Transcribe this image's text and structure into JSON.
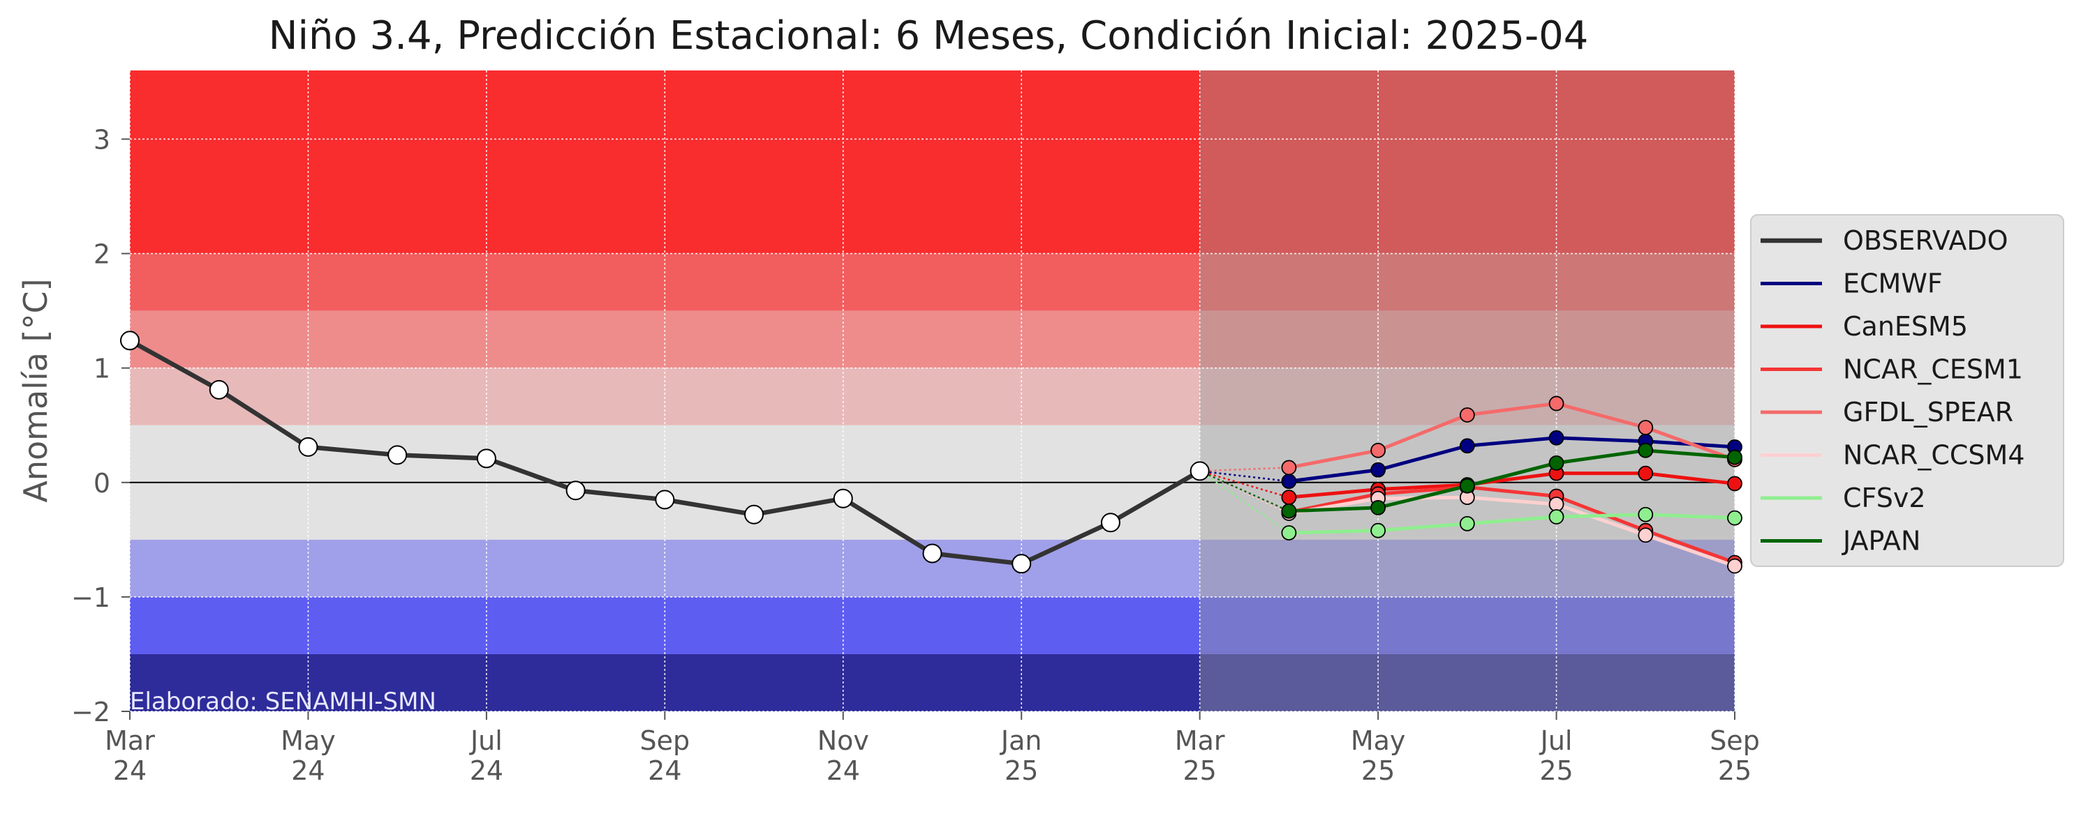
{
  "chart_data": {
    "type": "line",
    "title": "Niño 3.4, Predicción Estacional: 6 Meses, Condición Inicial: 2025-04",
    "xlabel": "",
    "ylabel": "Anomalía [°C]",
    "ylim": [
      -2,
      3.6
    ],
    "yticks": [
      -2,
      -1,
      0,
      1,
      2,
      3
    ],
    "ytick_labels": [
      "−2",
      "−1",
      "0",
      "1",
      "2",
      "3"
    ],
    "xlim": [
      "2024-03",
      "2025-09"
    ],
    "xticks": [
      "2024-03",
      "2024-05",
      "2024-07",
      "2024-09",
      "2024-11",
      "2025-01",
      "2025-03",
      "2025-05",
      "2025-07",
      "2025-09"
    ],
    "xtick_labels": [
      "Mar\n24",
      "May\n24",
      "Jul\n24",
      "Sep\n24",
      "Nov\n24",
      "Jan\n25",
      "Mar\n25",
      "May\n25",
      "Jul\n25",
      "Sep\n25"
    ],
    "grid": true,
    "legend_position": "right",
    "forecast_start": "2025-03",
    "background_bands": [
      {
        "from": 2.0,
        "to": 3.6,
        "color": "#f92c2e"
      },
      {
        "from": 1.5,
        "to": 2.0,
        "color": "#f25d5e"
      },
      {
        "from": 1.0,
        "to": 1.5,
        "color": "#ee8c8c"
      },
      {
        "from": 0.5,
        "to": 1.0,
        "color": "#e8b9b9"
      },
      {
        "from": -0.5,
        "to": 0.5,
        "color": "#e2e2e2"
      },
      {
        "from": -1.0,
        "to": -0.5,
        "color": "#a09fe9"
      },
      {
        "from": -1.5,
        "to": -1.0,
        "color": "#5e5df2"
      },
      {
        "from": -2.0,
        "to": -1.5,
        "color": "#2e2c9a"
      }
    ],
    "observed": {
      "name": "OBSERVADO",
      "color": "#333333",
      "x": [
        "2024-03",
        "2024-04",
        "2024-05",
        "2024-06",
        "2024-07",
        "2024-08",
        "2024-09",
        "2024-10",
        "2024-11",
        "2024-12",
        "2025-01",
        "2025-02",
        "2025-03"
      ],
      "values": [
        1.24,
        0.81,
        0.31,
        0.24,
        0.21,
        -0.07,
        -0.15,
        -0.28,
        -0.14,
        -0.62,
        -0.71,
        -0.35,
        0.1
      ]
    },
    "series": [
      {
        "name": "ECMWF",
        "color": "#000080",
        "x": [
          "2025-04",
          "2025-05",
          "2025-06",
          "2025-07",
          "2025-08",
          "2025-09"
        ],
        "values": [
          0.01,
          0.11,
          0.32,
          0.39,
          0.36,
          0.31
        ]
      },
      {
        "name": "CanESM5",
        "color": "#ee1111",
        "x": [
          "2025-04",
          "2025-05",
          "2025-06",
          "2025-07",
          "2025-08",
          "2025-09"
        ],
        "values": [
          -0.13,
          -0.06,
          -0.02,
          0.08,
          0.08,
          -0.01
        ]
      },
      {
        "name": "NCAR_CESM1",
        "color": "#f53535",
        "x": [
          "2025-04",
          "2025-05",
          "2025-06",
          "2025-07",
          "2025-08",
          "2025-09"
        ],
        "values": [
          -0.26,
          -0.1,
          -0.04,
          -0.12,
          -0.42,
          -0.7
        ]
      },
      {
        "name": "GFDL_SPEAR",
        "color": "#f56a6a",
        "x": [
          "2025-04",
          "2025-05",
          "2025-06",
          "2025-07",
          "2025-08",
          "2025-09"
        ],
        "values": [
          0.13,
          0.28,
          0.59,
          0.69,
          0.48,
          0.2
        ]
      },
      {
        "name": "NCAR_CCSM4",
        "color": "#ffd0d0",
        "x": [
          "2025-04",
          "2025-05",
          "2025-06",
          "2025-07",
          "2025-08",
          "2025-09"
        ],
        "values": [
          -0.27,
          -0.14,
          -0.13,
          -0.19,
          -0.46,
          -0.73
        ]
      },
      {
        "name": "CFSv2",
        "color": "#90ee90",
        "x": [
          "2025-04",
          "2025-05",
          "2025-06",
          "2025-07",
          "2025-08",
          "2025-09"
        ],
        "values": [
          -0.44,
          -0.42,
          -0.36,
          -0.3,
          -0.28,
          -0.31
        ]
      },
      {
        "name": "JAPAN",
        "color": "#006400",
        "x": [
          "2025-04",
          "2025-05",
          "2025-06",
          "2025-07",
          "2025-08",
          "2025-09"
        ],
        "values": [
          -0.25,
          -0.22,
          -0.03,
          0.17,
          0.28,
          0.22
        ]
      }
    ],
    "annotation": "Elaborado: SENAMHI-SMN"
  }
}
